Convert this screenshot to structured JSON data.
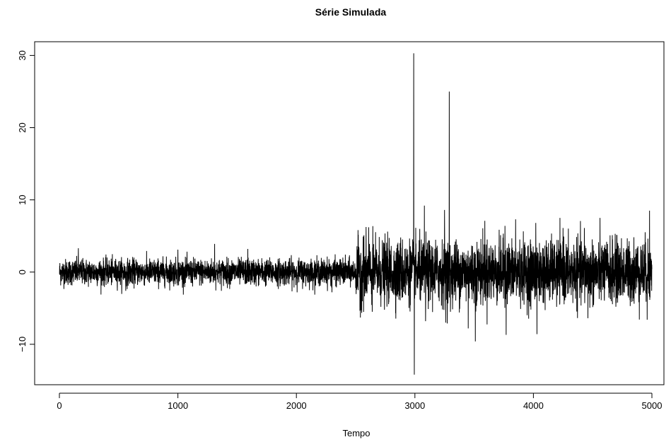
{
  "chart_data": {
    "type": "line",
    "title": "Série Simulada",
    "xlabel": "Tempo",
    "ylabel": "",
    "xlim": [
      0,
      5000
    ],
    "ylim": [
      -15,
      31
    ],
    "grid": false,
    "legend": "none",
    "line_color": "#000000",
    "x_ticks": [
      0,
      1000,
      2000,
      3000,
      4000,
      5000
    ],
    "x_tick_labels": [
      "0",
      "1000",
      "2000",
      "3000",
      "4000",
      "5000"
    ],
    "y_ticks": [
      -10,
      0,
      10,
      20,
      30
    ],
    "y_tick_labels": [
      "−10",
      "0",
      "10",
      "20",
      "30"
    ],
    "series": [
      {
        "n_points": 5000,
        "regimes": [
          {
            "start": 1,
            "end": 2500,
            "typical_range": [
              -2.5,
              2.5
            ]
          },
          {
            "start": 2501,
            "end": 5000,
            "typical_range": [
              -6,
              6
            ]
          }
        ],
        "extremes": [
          {
            "x": 160,
            "y": 3.3
          },
          {
            "x": 560,
            "y": -2.6
          },
          {
            "x": 1000,
            "y": 3.1
          },
          {
            "x": 1310,
            "y": 3.9
          },
          {
            "x": 1590,
            "y": 3.2
          },
          {
            "x": 2300,
            "y": -2.8
          },
          {
            "x": 2540,
            "y": -6.3
          },
          {
            "x": 2570,
            "y": 5.1
          },
          {
            "x": 2610,
            "y": 6.2
          },
          {
            "x": 2640,
            "y": -5.5
          },
          {
            "x": 2880,
            "y": 4.8
          },
          {
            "x": 2990,
            "y": 30.3
          },
          {
            "x": 2995,
            "y": -14.2
          },
          {
            "x": 3080,
            "y": 9.2
          },
          {
            "x": 3090,
            "y": -6.8
          },
          {
            "x": 3250,
            "y": 8.6
          },
          {
            "x": 3260,
            "y": -7.0
          },
          {
            "x": 3290,
            "y": 25.0
          },
          {
            "x": 3300,
            "y": -5.5
          },
          {
            "x": 3450,
            "y": -7.8
          },
          {
            "x": 3510,
            "y": -9.6
          },
          {
            "x": 3590,
            "y": 7.1
          },
          {
            "x": 3760,
            "y": 6.4
          },
          {
            "x": 3770,
            "y": -8.7
          },
          {
            "x": 3850,
            "y": 7.3
          },
          {
            "x": 4020,
            "y": 6.8
          },
          {
            "x": 4030,
            "y": -8.6
          },
          {
            "x": 4250,
            "y": 6.1
          },
          {
            "x": 4430,
            "y": 6.1
          },
          {
            "x": 4460,
            "y": -6.4
          },
          {
            "x": 4690,
            "y": 5.3
          },
          {
            "x": 4960,
            "y": -6.6
          },
          {
            "x": 4980,
            "y": 8.5
          }
        ]
      }
    ]
  }
}
